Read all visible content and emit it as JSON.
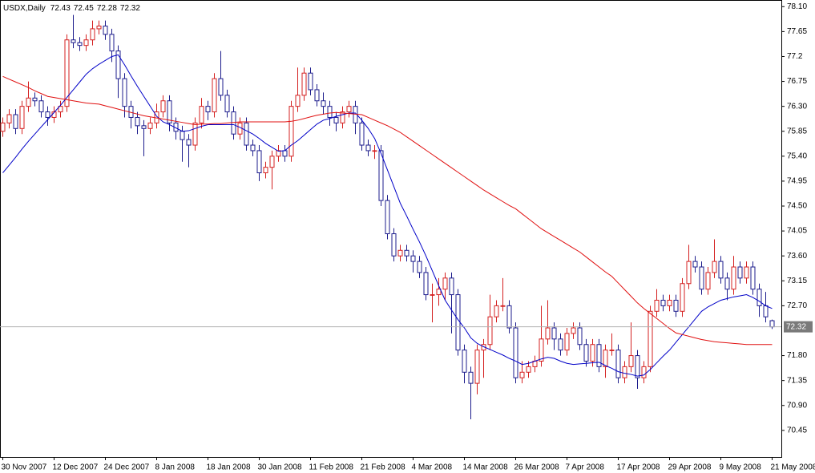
{
  "chart_data": {
    "type": "candlestick",
    "title": "USDX,Daily",
    "categories": [
      "30 Nov 2007",
      null,
      null,
      null,
      null,
      null,
      null,
      null,
      "12 Dec 2007",
      null,
      null,
      null,
      null,
      null,
      null,
      null,
      "24 Dec 2007",
      null,
      null,
      null,
      null,
      null,
      null,
      null,
      "8 Jan 2008",
      null,
      null,
      null,
      null,
      null,
      null,
      null,
      "18 Jan 2008",
      null,
      null,
      null,
      null,
      null,
      null,
      null,
      "30 Jan 2008",
      null,
      null,
      null,
      null,
      null,
      null,
      null,
      "11 Feb 2008",
      null,
      null,
      null,
      null,
      null,
      null,
      null,
      "21 Feb 2008",
      null,
      null,
      null,
      null,
      null,
      null,
      null,
      "4 Mar 2008",
      null,
      null,
      null,
      null,
      null,
      null,
      null,
      "14 Mar 2008",
      null,
      null,
      null,
      null,
      null,
      null,
      null,
      "26 Mar 2008",
      null,
      null,
      null,
      null,
      null,
      null,
      null,
      "7 Apr 2008",
      null,
      null,
      null,
      null,
      null,
      null,
      null,
      "17 Apr 2008",
      null,
      null,
      null,
      null,
      null,
      null,
      null,
      "29 Apr 2008",
      null,
      null,
      null,
      null,
      null,
      null,
      null,
      "9 May 2008",
      null,
      null,
      null,
      null,
      null,
      null,
      null,
      "21 May 2008"
    ],
    "open": [
      75.85,
      76.0,
      76.15,
      75.9,
      76.3,
      76.45,
      76.4,
      76.2,
      76.1,
      76.2,
      76.3,
      77.5,
      77.45,
      77.4,
      77.5,
      77.7,
      77.75,
      77.6,
      77.3,
      76.8,
      76.3,
      76.1,
      75.95,
      75.9,
      76.0,
      76.2,
      76.4,
      76.0,
      75.85,
      75.7,
      75.6,
      76.0,
      76.3,
      76.2,
      76.8,
      76.5,
      76.2,
      75.8,
      76.0,
      75.6,
      75.5,
      75.1,
      75.2,
      75.4,
      75.5,
      75.4,
      76.3,
      76.5,
      76.9,
      76.6,
      76.4,
      76.3,
      76.1,
      76.0,
      76.2,
      76.3,
      76.0,
      75.6,
      75.5,
      75.5,
      74.6,
      74.0,
      73.6,
      73.7,
      73.6,
      73.5,
      73.3,
      72.9,
      72.9,
      73.0,
      73.2,
      72.9,
      71.9,
      71.5,
      71.3,
      71.9,
      72.0,
      72.5,
      72.7,
      72.7,
      72.3,
      71.4,
      71.5,
      71.6,
      71.7,
      72.1,
      72.3,
      72.1,
      71.9,
      72.2,
      72.3,
      72.0,
      71.7,
      72.0,
      71.6,
      71.9,
      71.9,
      71.4,
      71.6,
      71.8,
      71.4,
      71.6,
      72.6,
      72.8,
      72.7,
      72.8,
      72.6,
      73.1,
      73.5,
      73.4,
      73.0,
      73.3,
      73.5,
      73.2,
      73.0,
      73.4,
      73.2,
      73.4,
      73.0,
      72.7,
      72.43
    ],
    "high": [
      76.1,
      76.25,
      76.25,
      76.4,
      76.75,
      76.55,
      76.5,
      76.3,
      76.3,
      76.4,
      77.6,
      77.95,
      77.55,
      77.6,
      77.85,
      77.85,
      77.85,
      77.7,
      77.4,
      76.9,
      76.4,
      76.2,
      76.05,
      76.1,
      76.35,
      76.5,
      76.5,
      76.1,
      75.95,
      75.8,
      76.1,
      76.45,
      76.4,
      76.9,
      77.3,
      76.6,
      76.3,
      76.1,
      76.1,
      75.7,
      75.6,
      75.3,
      75.5,
      75.6,
      75.6,
      76.4,
      77.0,
      77.0,
      77.0,
      76.7,
      76.55,
      76.4,
      76.2,
      76.3,
      76.4,
      76.4,
      76.1,
      75.7,
      75.6,
      75.6,
      74.7,
      74.1,
      73.8,
      73.8,
      73.7,
      73.6,
      73.4,
      73.1,
      73.2,
      73.3,
      73.3,
      73.0,
      72.0,
      71.6,
      72.0,
      72.1,
      72.9,
      72.8,
      73.2,
      72.8,
      72.4,
      71.7,
      71.7,
      71.8,
      72.7,
      72.8,
      72.4,
      72.2,
      72.3,
      72.4,
      72.4,
      72.1,
      72.1,
      72.1,
      72.0,
      72.2,
      72.0,
      71.7,
      72.4,
      71.9,
      71.7,
      72.7,
      73.0,
      72.9,
      72.9,
      72.9,
      73.2,
      73.8,
      73.6,
      73.5,
      73.4,
      73.9,
      73.6,
      73.3,
      73.6,
      73.5,
      73.5,
      73.5,
      73.1,
      72.95,
      72.45
    ],
    "low": [
      75.75,
      75.9,
      75.8,
      75.8,
      76.2,
      76.3,
      76.1,
      75.95,
      76.0,
      76.1,
      76.2,
      77.35,
      77.3,
      77.3,
      77.4,
      77.6,
      77.5,
      77.1,
      76.45,
      76.1,
      75.9,
      75.8,
      75.4,
      75.8,
      75.9,
      76.1,
      75.85,
      75.7,
      75.3,
      75.2,
      75.5,
      75.9,
      76.05,
      76.1,
      76.4,
      76.1,
      75.7,
      75.7,
      75.5,
      75.4,
      74.95,
      75.0,
      74.8,
      75.3,
      75.3,
      75.3,
      76.2,
      76.4,
      76.5,
      76.3,
      76.15,
      75.95,
      75.85,
      75.9,
      76.1,
      75.8,
      75.5,
      75.4,
      75.35,
      74.5,
      73.9,
      73.5,
      73.5,
      73.5,
      73.3,
      73.2,
      72.8,
      72.4,
      72.7,
      72.8,
      72.2,
      71.8,
      71.3,
      70.65,
      71.1,
      71.4,
      71.9,
      72.4,
      72.6,
      72.2,
      71.3,
      71.3,
      71.4,
      71.5,
      71.6,
      72.0,
      71.9,
      71.8,
      71.8,
      72.1,
      71.9,
      71.6,
      71.6,
      71.5,
      71.4,
      71.8,
      71.3,
      71.3,
      71.5,
      71.2,
      71.3,
      71.5,
      72.5,
      72.6,
      72.6,
      72.5,
      72.5,
      73.0,
      73.3,
      72.9,
      72.9,
      73.2,
      73.1,
      72.8,
      72.9,
      73.1,
      73.1,
      72.9,
      72.5,
      72.4,
      72.28
    ],
    "close": [
      76.0,
      76.15,
      75.9,
      76.3,
      76.45,
      76.4,
      76.2,
      76.1,
      76.2,
      76.3,
      77.5,
      77.45,
      77.4,
      77.5,
      77.7,
      77.75,
      77.6,
      77.3,
      76.8,
      76.3,
      76.1,
      75.95,
      75.9,
      76.0,
      76.2,
      76.4,
      76.0,
      75.85,
      75.7,
      75.6,
      76.0,
      76.3,
      76.2,
      76.8,
      76.5,
      76.2,
      75.8,
      76.0,
      75.6,
      75.5,
      75.1,
      75.2,
      75.4,
      75.5,
      75.4,
      76.3,
      76.5,
      76.9,
      76.6,
      76.4,
      76.3,
      76.1,
      76.0,
      76.2,
      76.3,
      76.0,
      75.6,
      75.5,
      75.5,
      74.6,
      74.0,
      73.6,
      73.7,
      73.6,
      73.5,
      73.3,
      72.9,
      72.9,
      73.0,
      73.2,
      72.9,
      71.9,
      71.5,
      71.3,
      71.9,
      72.0,
      72.5,
      72.7,
      72.7,
      72.3,
      71.4,
      71.5,
      71.6,
      71.7,
      72.1,
      72.3,
      72.1,
      71.9,
      72.2,
      72.3,
      72.0,
      71.7,
      72.0,
      71.6,
      71.9,
      71.9,
      71.4,
      71.6,
      71.8,
      71.4,
      71.6,
      72.6,
      72.8,
      72.7,
      72.8,
      72.6,
      73.1,
      73.5,
      73.4,
      73.0,
      73.3,
      73.5,
      73.2,
      73.0,
      73.4,
      73.2,
      73.4,
      73.0,
      72.7,
      72.5,
      72.32
    ],
    "bull_color": "#d42020",
    "bear_color": "#1c1c8c",
    "series": [
      {
        "color": "#0000c8",
        "values": [
          75.1,
          75.24,
          75.38,
          75.53,
          75.67,
          75.8,
          75.93,
          76.06,
          76.19,
          76.32,
          76.46,
          76.6,
          76.74,
          76.88,
          76.98,
          77.06,
          77.13,
          77.2,
          77.23,
          77.05,
          76.85,
          76.66,
          76.48,
          76.3,
          76.12,
          76.02,
          75.97,
          75.91,
          75.85,
          75.86,
          75.9,
          75.94,
          75.97,
          75.97,
          75.97,
          75.97,
          75.97,
          75.92,
          75.86,
          75.8,
          75.72,
          75.63,
          75.56,
          75.49,
          75.5,
          75.6,
          75.68,
          75.78,
          75.88,
          75.98,
          76.05,
          76.08,
          76.12,
          76.15,
          76.18,
          76.18,
          76.05,
          75.9,
          75.72,
          75.45,
          75.15,
          74.85,
          74.55,
          74.32,
          74.08,
          73.85,
          73.6,
          73.33,
          73.06,
          72.8,
          72.62,
          72.45,
          72.3,
          72.12,
          72.02,
          71.96,
          71.91,
          71.86,
          71.81,
          71.75,
          71.7,
          71.64,
          71.66,
          71.7,
          71.74,
          71.77,
          71.75,
          71.7,
          71.66,
          71.64,
          71.65,
          71.66,
          71.67,
          71.68,
          71.62,
          71.57,
          71.51,
          71.48,
          71.46,
          71.43,
          71.45,
          71.55,
          71.67,
          71.79,
          71.9,
          72.04,
          72.18,
          72.32,
          72.46,
          72.6,
          72.68,
          72.74,
          72.8,
          72.83,
          72.86,
          72.88,
          72.9,
          72.85,
          72.78,
          72.7,
          72.65
        ]
      },
      {
        "color": "#e01010",
        "values": [
          76.84,
          76.79,
          76.74,
          76.69,
          76.64,
          76.58,
          76.53,
          76.48,
          76.46,
          76.44,
          76.42,
          76.4,
          76.38,
          76.36,
          76.35,
          76.34,
          76.31,
          76.28,
          76.25,
          76.22,
          76.19,
          76.16,
          76.13,
          76.11,
          76.09,
          76.07,
          76.05,
          76.03,
          76.01,
          75.99,
          75.97,
          75.98,
          75.98,
          75.99,
          75.99,
          76.0,
          76.01,
          76.02,
          76.02,
          76.02,
          76.02,
          76.02,
          76.02,
          76.02,
          76.02,
          76.03,
          76.05,
          76.08,
          76.11,
          76.14,
          76.16,
          76.18,
          76.19,
          76.18,
          76.17,
          76.16,
          76.15,
          76.1,
          76.05,
          76.0,
          75.95,
          75.89,
          75.83,
          75.75,
          75.67,
          75.59,
          75.51,
          75.43,
          75.35,
          75.27,
          75.19,
          75.11,
          75.03,
          74.95,
          74.87,
          74.79,
          74.72,
          74.65,
          74.58,
          74.51,
          74.45,
          74.36,
          74.27,
          74.18,
          74.09,
          74.02,
          73.95,
          73.88,
          73.81,
          73.74,
          73.67,
          73.58,
          73.49,
          73.4,
          73.31,
          73.23,
          73.11,
          72.99,
          72.87,
          72.75,
          72.65,
          72.56,
          72.47,
          72.38,
          72.29,
          72.21,
          72.18,
          72.15,
          72.12,
          72.09,
          72.07,
          72.05,
          72.04,
          72.03,
          72.02,
          72.01,
          72.0,
          72.0,
          72.0,
          72.0,
          72.0
        ]
      }
    ],
    "ylim": [
      69.97,
      78.22
    ],
    "yticks": [
      {
        "value": 78.1,
        "label": "78.10"
      },
      77.65,
      77.2,
      76.75,
      {
        "value": 76.3,
        "label": "76.30"
      },
      75.85,
      {
        "value": 75.4,
        "label": "75.40"
      },
      74.95,
      {
        "value": 74.5,
        "label": "74.50"
      },
      74.05,
      {
        "value": 73.6,
        "label": "73.60"
      },
      73.15,
      {
        "value": 72.7,
        "label": "72.70"
      },
      {
        "value": 71.8,
        "label": "71.80"
      },
      71.35,
      {
        "value": 70.9,
        "label": "70.90"
      },
      70.45
    ],
    "last_price_line": true,
    "grid": false
  }
}
